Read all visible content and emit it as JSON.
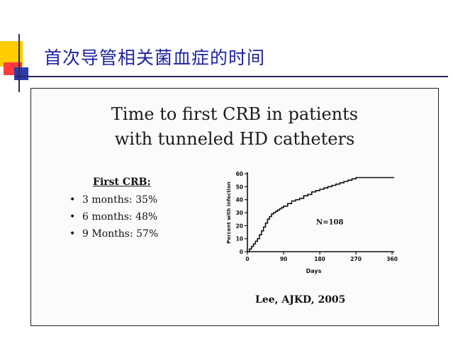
{
  "slide": {
    "title": "首次导管相关菌血症的时间",
    "figure_title_line1": "Time to first CRB in patients",
    "figure_title_line2": "with tunneled HD catheters",
    "crb_heading": "First CRB:",
    "crb_items": [
      "3 months: 35%",
      "6 months: 48%",
      "9 Months: 57%"
    ],
    "citation": "Lee, AJKD, 2005",
    "colors": {
      "title": "#1d23a0",
      "plot": "#111111",
      "decor_yellow": "#ffcc00",
      "decor_red": "#ff3b3b",
      "decor_blue": "#2e3aa8"
    }
  },
  "chart_data": {
    "type": "line",
    "title": "",
    "xlabel": "Days",
    "ylabel": "Percent with infection",
    "xlim": [
      0,
      365
    ],
    "ylim": [
      0,
      60
    ],
    "xticks": [
      0,
      90,
      180,
      270,
      360
    ],
    "xtick_labels": [
      "0",
      "90",
      "180",
      "270",
      "360"
    ],
    "yticks": [
      0,
      10,
      20,
      30,
      40,
      50,
      60
    ],
    "ytick_labels": [
      "0",
      "10",
      "20",
      "30",
      "40",
      "50",
      "60"
    ],
    "annotation": "N=108",
    "grid": false,
    "legend": "none",
    "series": [
      {
        "x": [
          0,
          5,
          10,
          15,
          20,
          25,
          30,
          35,
          40,
          45,
          50,
          55,
          60,
          65,
          70,
          75,
          80,
          85,
          90,
          100,
          110,
          120,
          130,
          140,
          150,
          160,
          170,
          180,
          190,
          200,
          210,
          220,
          230,
          240,
          250,
          260,
          270,
          300,
          330,
          365
        ],
        "y": [
          0,
          2,
          4,
          6,
          8,
          10,
          13,
          16,
          19,
          22,
          25,
          27,
          29,
          30,
          31,
          32,
          33,
          34,
          35,
          37,
          39,
          40,
          41,
          43,
          44,
          46,
          47,
          48,
          49,
          50,
          51,
          52,
          53,
          54,
          55,
          56,
          57,
          57,
          57,
          57
        ]
      }
    ]
  }
}
